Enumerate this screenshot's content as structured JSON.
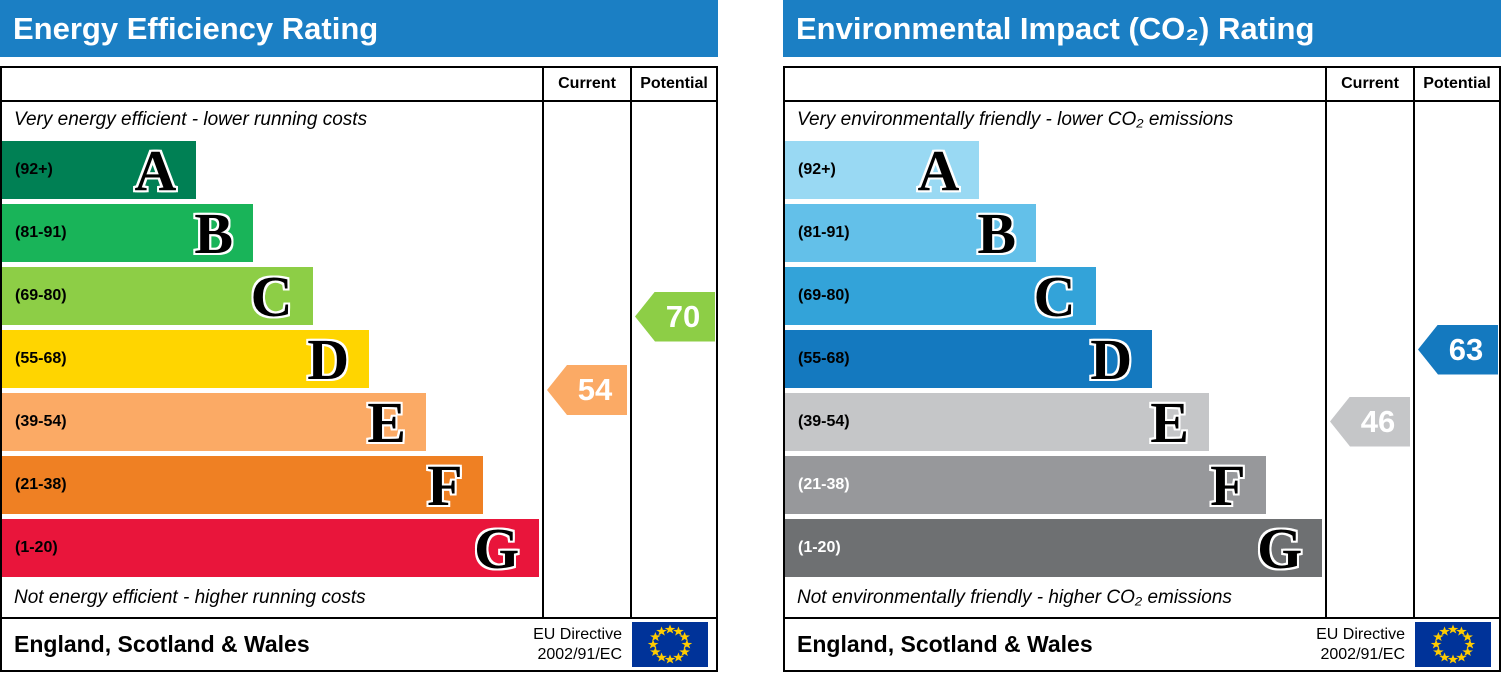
{
  "theme": {
    "title_bar_color": "#1b7fc4",
    "flag_blue": "#003399",
    "flag_star": "#ffcc00"
  },
  "chart_data": [
    {
      "type": "bar",
      "title": "Energy Efficiency Rating",
      "column_headers": {
        "current": "Current",
        "potential": "Potential"
      },
      "top_caption": "Very energy efficient - lower running costs",
      "bottom_caption": "Not energy efficient - higher running costs",
      "bands": [
        {
          "letter": "A",
          "range_label": "(92+)",
          "min": 92,
          "max": 100,
          "color": "#008054",
          "range_label_color": "#000000",
          "width_pct": 36
        },
        {
          "letter": "B",
          "range_label": "(81-91)",
          "min": 81,
          "max": 91,
          "color": "#19b459",
          "range_label_color": "#000000",
          "width_pct": 46.5
        },
        {
          "letter": "C",
          "range_label": "(69-80)",
          "min": 69,
          "max": 80,
          "color": "#8dce46",
          "range_label_color": "#000000",
          "width_pct": 57.5
        },
        {
          "letter": "D",
          "range_label": "(55-68)",
          "min": 55,
          "max": 68,
          "color": "#ffd500",
          "range_label_color": "#000000",
          "width_pct": 68
        },
        {
          "letter": "E",
          "range_label": "(39-54)",
          "min": 39,
          "max": 54,
          "color": "#fbaa65",
          "range_label_color": "#000000",
          "width_pct": 78.5
        },
        {
          "letter": "F",
          "range_label": "(21-38)",
          "min": 21,
          "max": 38,
          "color": "#ef8023",
          "range_label_color": "#000000",
          "width_pct": 89
        },
        {
          "letter": "G",
          "range_label": "(1-20)",
          "min": 1,
          "max": 20,
          "color": "#e9153b",
          "range_label_color": "#000000",
          "width_pct": 99.5
        }
      ],
      "current": {
        "value": 54,
        "band": "E",
        "arrow_color": "#fbaa65"
      },
      "potential": {
        "value": 70,
        "band": "C",
        "arrow_color": "#8dce46"
      },
      "footer": {
        "region": "England, Scotland & Wales",
        "directive_line1": "EU Directive",
        "directive_line2": "2002/91/EC"
      }
    },
    {
      "type": "bar",
      "title": "Environmental Impact (CO₂) Rating",
      "column_headers": {
        "current": "Current",
        "potential": "Potential"
      },
      "top_caption": "Very environmentally friendly - lower CO₂ emissions",
      "bottom_caption": "Not environmentally friendly - higher CO₂ emissions",
      "bands": [
        {
          "letter": "A",
          "range_label": "(92+)",
          "min": 92,
          "max": 100,
          "color": "#99d9f3",
          "range_label_color": "#000000",
          "width_pct": 36
        },
        {
          "letter": "B",
          "range_label": "(81-91)",
          "min": 81,
          "max": 91,
          "color": "#63c0e9",
          "range_label_color": "#000000",
          "width_pct": 46.5
        },
        {
          "letter": "C",
          "range_label": "(69-80)",
          "min": 69,
          "max": 80,
          "color": "#33a3d9",
          "range_label_color": "#000000",
          "width_pct": 57.5
        },
        {
          "letter": "D",
          "range_label": "(55-68)",
          "min": 55,
          "max": 68,
          "color": "#1479bf",
          "range_label_color": "#000000",
          "width_pct": 68
        },
        {
          "letter": "E",
          "range_label": "(39-54)",
          "min": 39,
          "max": 54,
          "color": "#c5c6c8",
          "range_label_color": "#000000",
          "width_pct": 78.5
        },
        {
          "letter": "F",
          "range_label": "(21-38)",
          "min": 21,
          "max": 38,
          "color": "#97989b",
          "range_label_color": "#ffffff",
          "width_pct": 89
        },
        {
          "letter": "G",
          "range_label": "(1-20)",
          "min": 1,
          "max": 20,
          "color": "#6e7072",
          "range_label_color": "#ffffff",
          "width_pct": 99.5
        }
      ],
      "current": {
        "value": 46,
        "band": "E",
        "arrow_color": "#c5c6c8"
      },
      "potential": {
        "value": 63,
        "band": "D",
        "arrow_color": "#1479bf"
      },
      "footer": {
        "region": "England, Scotland & Wales",
        "directive_line1": "EU Directive",
        "directive_line2": "2002/91/EC"
      }
    }
  ]
}
